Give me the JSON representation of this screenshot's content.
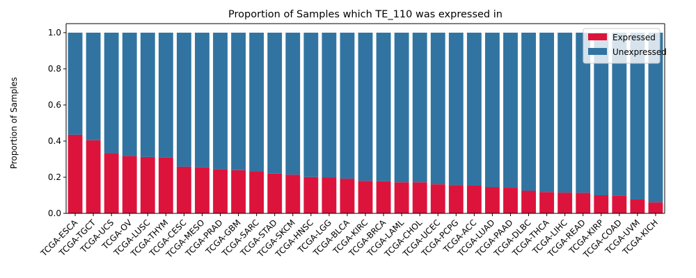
{
  "chart_data": {
    "type": "bar",
    "stacked": true,
    "title": "Proportion of Samples which TE_110 was expressed in",
    "xlabel": "",
    "ylabel": "Proportion of Samples",
    "ylim": [
      0,
      1.05
    ],
    "yticks": [
      0.0,
      0.2,
      0.4,
      0.6,
      0.8,
      1.0
    ],
    "ytick_labels": [
      "0.0",
      "0.2",
      "0.4",
      "0.6",
      "0.8",
      "1.0"
    ],
    "grid": false,
    "legend_position": "top-right",
    "categories": [
      "TCGA-ESCA",
      "TCGA-TGCT",
      "TCGA-UCS",
      "TCGA-OV",
      "TCGA-LUSC",
      "TCGA-THYM",
      "TCGA-CESC",
      "TCGA-MESO",
      "TCGA-PRAD",
      "TCGA-GBM",
      "TCGA-SARC",
      "TCGA-STAD",
      "TCGA-SKCM",
      "TCGA-HNSC",
      "TCGA-LGG",
      "TCGA-BLCA",
      "TCGA-KIRC",
      "TCGA-BRCA",
      "TCGA-LAML",
      "TCGA-CHOL",
      "TCGA-UCEC",
      "TCGA-PCPG",
      "TCGA-ACC",
      "TCGA-LUAD",
      "TCGA-PAAD",
      "TCGA-DLBC",
      "TCGA-THCA",
      "TCGA-LIHC",
      "TCGA-READ",
      "TCGA-KIRP",
      "TCGA-COAD",
      "TCGA-UVM",
      "TCGA-KICH"
    ],
    "series": [
      {
        "name": "Expressed",
        "color": "#dc143c",
        "values": [
          0.435,
          0.405,
          0.333,
          0.317,
          0.312,
          0.308,
          0.258,
          0.255,
          0.245,
          0.239,
          0.233,
          0.22,
          0.214,
          0.201,
          0.198,
          0.192,
          0.18,
          0.178,
          0.172,
          0.172,
          0.161,
          0.157,
          0.154,
          0.146,
          0.142,
          0.125,
          0.118,
          0.115,
          0.114,
          0.1,
          0.099,
          0.077,
          0.061
        ]
      },
      {
        "name": "Unexpressed",
        "color": "#3274a1",
        "values": [
          0.565,
          0.595,
          0.667,
          0.683,
          0.688,
          0.692,
          0.742,
          0.745,
          0.755,
          0.761,
          0.767,
          0.78,
          0.786,
          0.799,
          0.802,
          0.808,
          0.82,
          0.822,
          0.828,
          0.828,
          0.839,
          0.843,
          0.846,
          0.854,
          0.858,
          0.875,
          0.882,
          0.885,
          0.886,
          0.9,
          0.901,
          0.923,
          0.939
        ]
      }
    ]
  }
}
